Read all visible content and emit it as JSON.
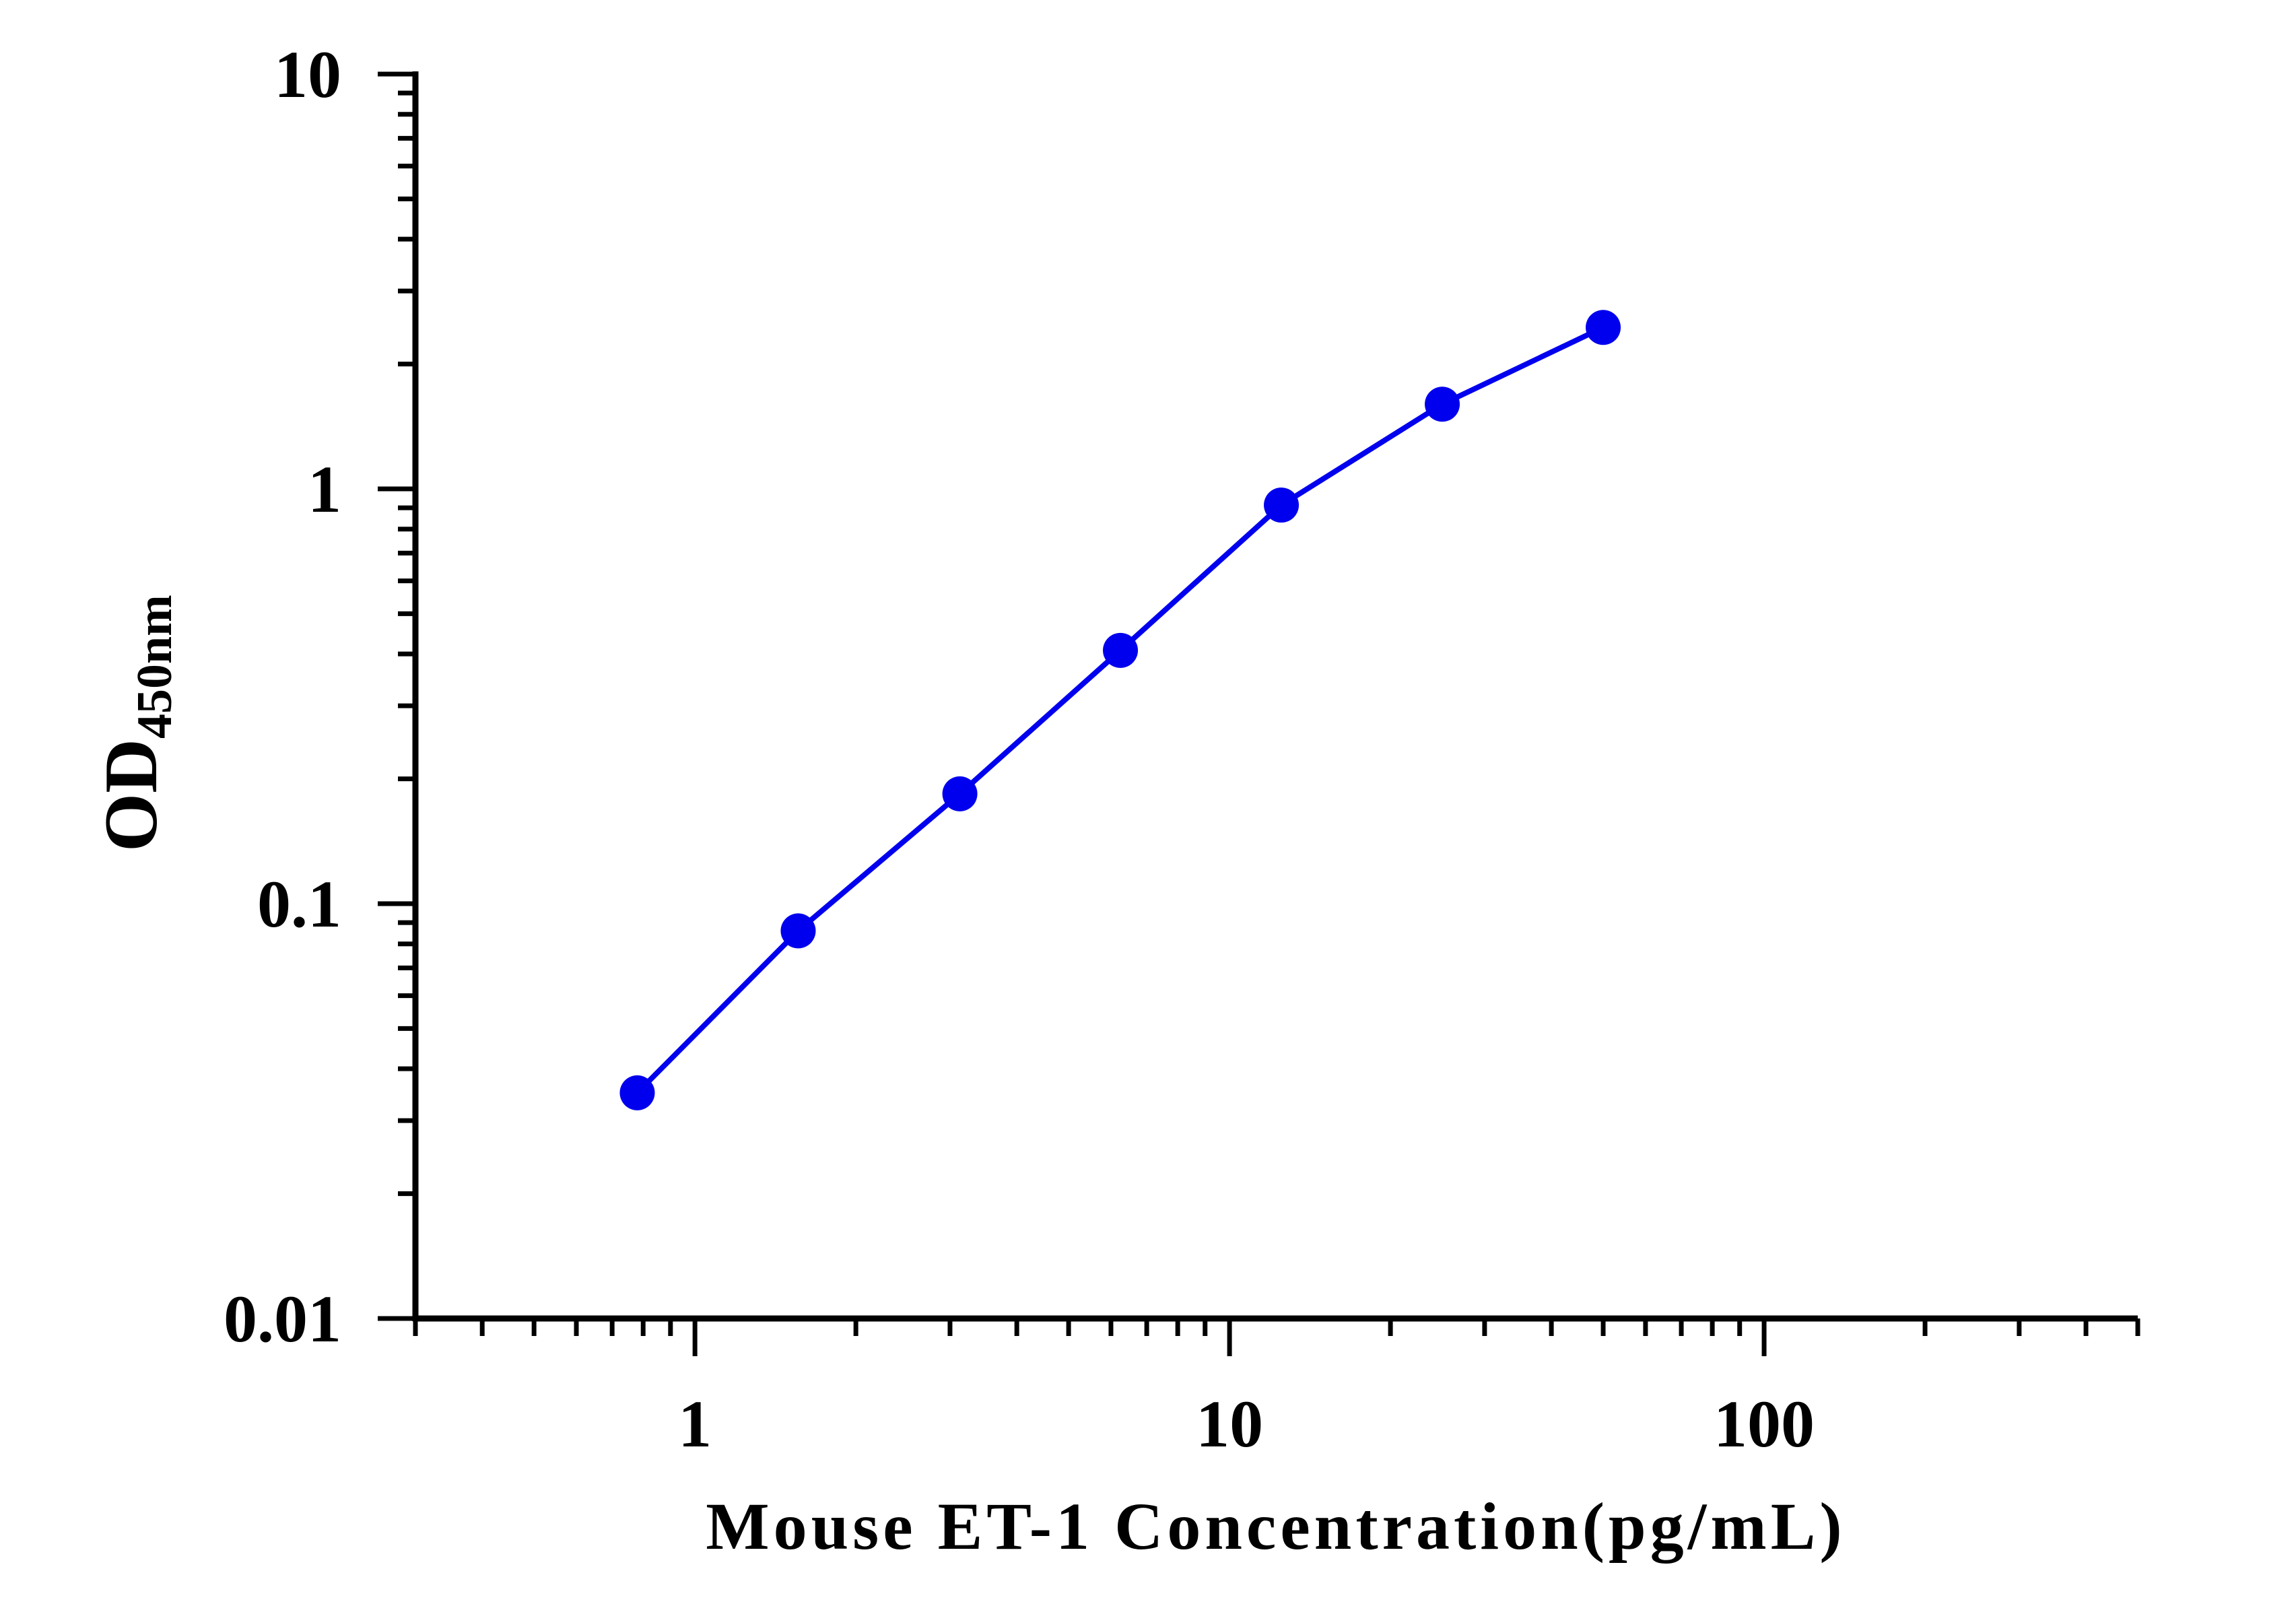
{
  "chart_data": {
    "type": "line",
    "xlabel": "Mouse ET-1 Concentration(pg/mL)",
    "ylabel_main": "OD",
    "ylabel_sub": "450nm",
    "x_scale": "log",
    "y_scale": "log",
    "xlim": [
      0.3,
      500
    ],
    "ylim": [
      0.01,
      10
    ],
    "x_tick_labels": [
      {
        "value": 1,
        "label": "1"
      },
      {
        "value": 10,
        "label": "10"
      },
      {
        "value": 100,
        "label": "100"
      }
    ],
    "y_tick_labels": [
      {
        "value": 0.01,
        "label": "0.01"
      },
      {
        "value": 0.1,
        "label": "0.1"
      },
      {
        "value": 1,
        "label": "1"
      },
      {
        "value": 10,
        "label": "10"
      }
    ],
    "grid": false,
    "legend": "none",
    "series": [
      {
        "color": "#0000ee",
        "x": [
          0.78,
          1.56,
          3.13,
          6.25,
          12.5,
          25,
          50
        ],
        "y": [
          0.035,
          0.086,
          0.184,
          0.408,
          0.914,
          1.6,
          2.45
        ]
      }
    ]
  }
}
